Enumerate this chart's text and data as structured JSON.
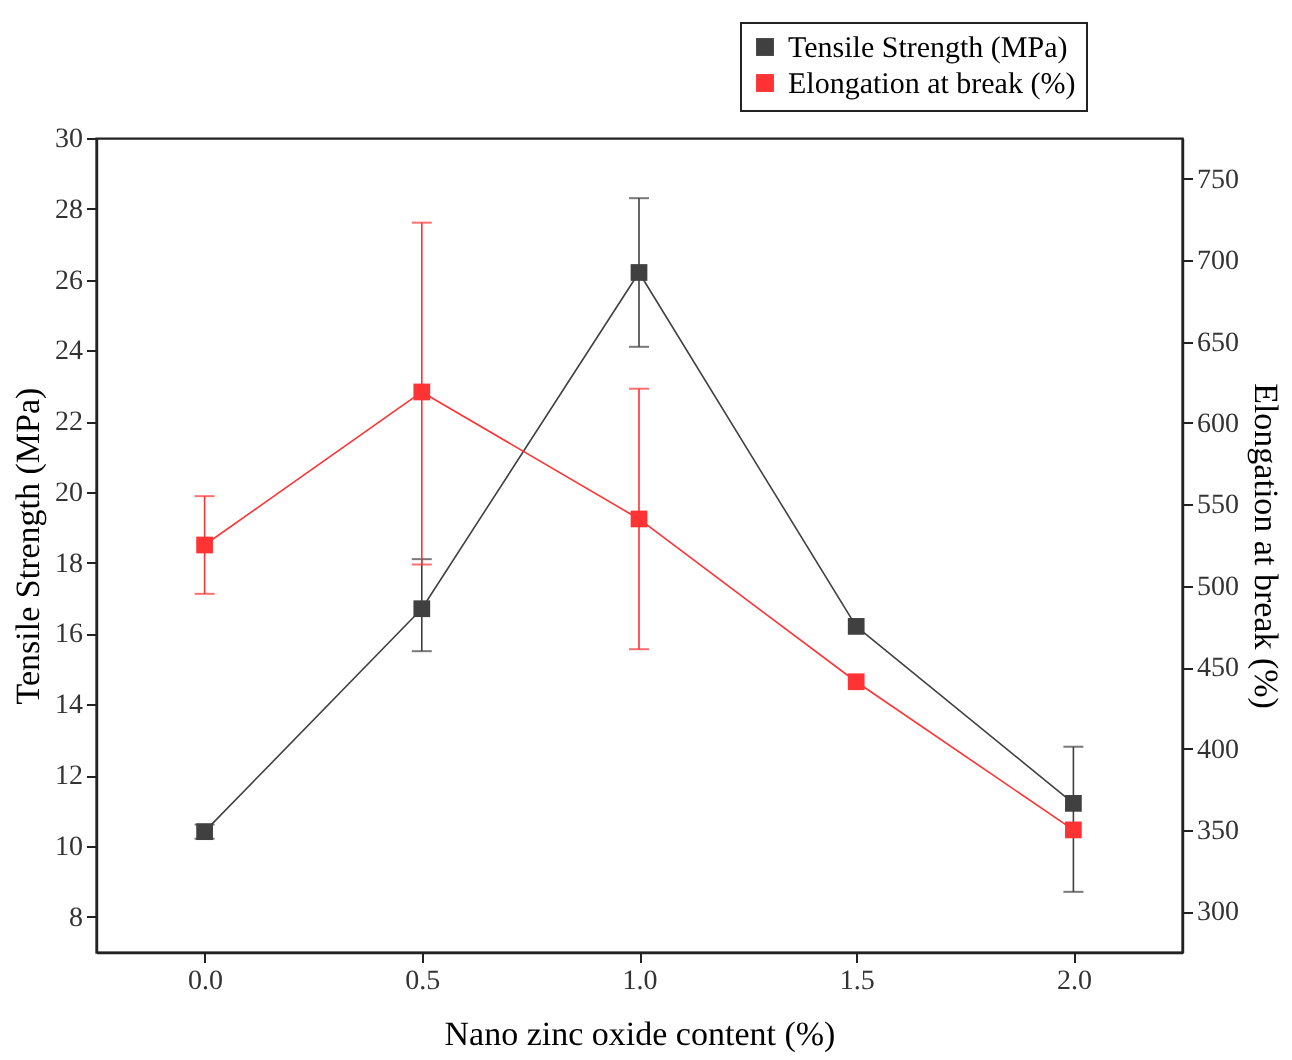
{
  "chart_data": {
    "type": "line",
    "xlabel": "Nano zinc oxide content (%)",
    "ylabel": "Tensile Strength (MPa)",
    "y2label": "Elongation at break (%)",
    "x": [
      0.0,
      0.5,
      1.0,
      1.5,
      2.0
    ],
    "xlim": [
      -0.25,
      2.25
    ],
    "xticks": [
      {
        "value": 0,
        "label": "0.0"
      },
      0.5,
      {
        "value": 1,
        "label": "1.0"
      },
      1.5,
      {
        "value": 2,
        "label": "2.0"
      }
    ],
    "ylim": [
      7,
      30
    ],
    "yticks": [
      8,
      10,
      12,
      14,
      16,
      18,
      20,
      22,
      24,
      26,
      28,
      30
    ],
    "y2lim": [
      275,
      775
    ],
    "y2ticks": [
      300,
      350,
      400,
      450,
      500,
      550,
      600,
      650,
      700,
      750
    ],
    "series": [
      {
        "name": "Tensile Strength (MPa)",
        "color": "#404040",
        "values": [
          10.4,
          16.7,
          26.2,
          16.2,
          11.2
        ],
        "errors": [
          0.2,
          [
            15.5,
            18.1
          ],
          2.1,
          null,
          [
            8.7,
            12.8
          ]
        ]
      },
      {
        "name": "Elongation at break (%)",
        "color": "#ff3333",
        "axis": "y2",
        "values": [
          525,
          619,
          541,
          441,
          350
        ],
        "errors": [
          [
            495,
            555
          ],
          [
            513,
            723
          ],
          80,
          null,
          null
        ]
      }
    ],
    "marker": "square",
    "line_style": "solid",
    "grid": false,
    "legend": "top right"
  }
}
